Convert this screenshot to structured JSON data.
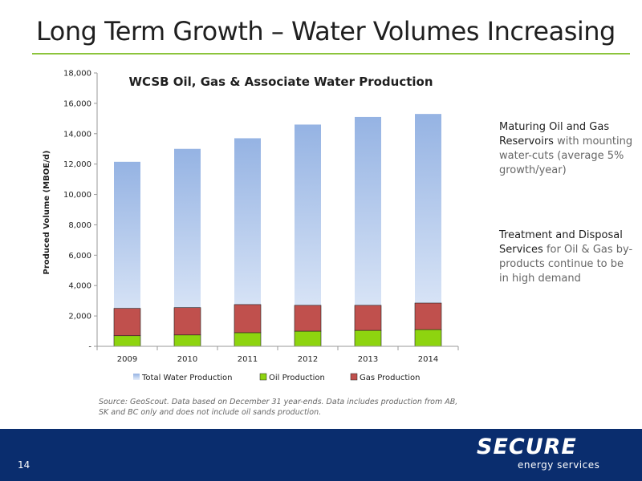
{
  "slide": {
    "title": "Long Term Growth – Water Volumes Increasing",
    "page_number": "14"
  },
  "chart_data": {
    "type": "bar",
    "title": "WCSB Oil, Gas & Associate Water Production",
    "ylabel": "Produced Volume (MBOE/d)",
    "xlabel": "",
    "categories": [
      "2009",
      "2010",
      "2011",
      "2012",
      "2013",
      "2014"
    ],
    "ylim": [
      0,
      18000
    ],
    "yticks": [
      {
        "value": 0,
        "label": "-"
      },
      {
        "value": 2000,
        "label": "2,000"
      },
      {
        "value": 4000,
        "label": "4,000"
      },
      {
        "value": 6000,
        "label": "6,000"
      },
      {
        "value": 8000,
        "label": "8,000"
      },
      {
        "value": 10000,
        "label": "10,000"
      },
      {
        "value": 12000,
        "label": "12,000"
      },
      {
        "value": 14000,
        "label": "14,000"
      },
      {
        "value": 16000,
        "label": "16,000"
      },
      {
        "value": 18000,
        "label": "18,000"
      }
    ],
    "series": [
      {
        "name": "Total Water Production",
        "values": [
          12150,
          13000,
          13700,
          14600,
          15100,
          15300
        ]
      },
      {
        "name": "Oil Production",
        "values": [
          700,
          750,
          900,
          1000,
          1050,
          1100
        ]
      },
      {
        "name": "Gas Production",
        "values": [
          1800,
          1800,
          1850,
          1700,
          1650,
          1750
        ]
      }
    ],
    "colors": {
      "water_top": "#95b3e3",
      "water_bottom": "#e6eefa",
      "oil": "#8ed40f",
      "gas": "#c0504d"
    },
    "legend_position": "bottom",
    "grid": false
  },
  "sidebar": {
    "block1": {
      "lead": "Maturing Oil and Gas Reservoirs",
      "rest": " with mounting water-cuts (average 5% growth/year)"
    },
    "block2": {
      "lead": "Treatment and Disposal Services",
      "rest": " for Oil & Gas by-products continue to be in high demand"
    }
  },
  "source_note": "Source: GeoScout. Data based on December 31 year-ends. Data includes production from AB, SK and BC only and does not include oil sands production.",
  "logo": {
    "name": "SECURE",
    "tagline": "energy services"
  }
}
